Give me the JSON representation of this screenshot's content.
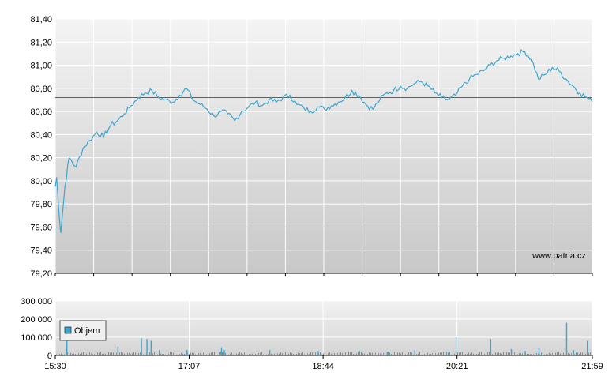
{
  "chart_data": [
    {
      "type": "line",
      "title": "",
      "xlabel": "",
      "ylabel": "",
      "ylim": [
        79.2,
        81.4
      ],
      "yticks": [
        "81,40",
        "81,20",
        "81,00",
        "80,80",
        "80,60",
        "80,40",
        "80,20",
        "80,00",
        "79,80",
        "79,60",
        "79,40",
        "79,20"
      ],
      "reference_line": 80.72,
      "watermark": "www.patria.cz",
      "grid": true,
      "colors": {
        "line": "#3aa6cf",
        "reference": "#d03030"
      },
      "series": [
        {
          "x": [
            "15:30",
            "15:31",
            "15:32",
            "15:33",
            "15:34",
            "15:37",
            "15:40",
            "15:45",
            "15:50",
            "15:55",
            "16:00",
            "16:05",
            "16:10",
            "16:15",
            "16:20",
            "16:25",
            "16:30",
            "16:35",
            "16:40",
            "16:45",
            "16:50",
            "16:55",
            "17:00",
            "17:05",
            "17:10",
            "17:15",
            "17:20",
            "17:25",
            "17:30",
            "17:35",
            "17:40",
            "17:45",
            "17:50",
            "17:55",
            "18:00",
            "18:05",
            "18:10",
            "18:15",
            "18:20",
            "18:25",
            "18:30",
            "18:35",
            "18:40",
            "18:45",
            "18:50",
            "18:55",
            "19:00",
            "19:05",
            "19:10",
            "19:15",
            "19:20",
            "19:25",
            "19:30",
            "19:35",
            "19:40",
            "19:45",
            "19:50",
            "19:55",
            "20:00",
            "20:05",
            "20:10",
            "20:15",
            "20:20",
            "20:25",
            "20:30",
            "20:35",
            "20:40",
            "20:45",
            "20:50",
            "20:55",
            "21:00",
            "21:05",
            "21:10",
            "21:15",
            "21:20",
            "21:25",
            "21:30",
            "21:35",
            "21:40",
            "21:45",
            "21:50",
            "21:55",
            "21:59"
          ],
          "values": [
            79.95,
            80.03,
            79.85,
            79.68,
            79.55,
            79.95,
            80.2,
            80.12,
            80.28,
            80.35,
            80.42,
            80.38,
            80.48,
            80.52,
            80.58,
            80.65,
            80.72,
            80.76,
            80.78,
            80.72,
            80.7,
            80.68,
            80.74,
            80.8,
            80.7,
            80.66,
            80.62,
            80.56,
            80.6,
            80.58,
            80.52,
            80.6,
            80.64,
            80.68,
            80.65,
            80.7,
            80.68,
            80.72,
            80.74,
            80.66,
            80.63,
            80.6,
            80.64,
            80.62,
            80.65,
            80.68,
            80.72,
            80.78,
            80.74,
            80.66,
            80.62,
            80.7,
            80.76,
            80.78,
            80.82,
            80.8,
            80.84,
            80.86,
            80.82,
            80.76,
            80.72,
            80.7,
            80.74,
            80.82,
            80.88,
            80.92,
            80.95,
            81.0,
            81.04,
            81.06,
            81.08,
            81.1,
            81.12,
            81.05,
            80.88,
            80.92,
            80.98,
            80.95,
            80.88,
            80.82,
            80.76,
            80.72,
            80.68
          ]
        }
      ]
    },
    {
      "type": "bar",
      "title": "",
      "xlabel": "",
      "ylabel": "",
      "ylim": [
        0,
        300000
      ],
      "yticks": [
        "300 000",
        "200 000",
        "100 000",
        "0"
      ],
      "xticks": [
        "15:30",
        "17:07",
        "18:44",
        "20:21",
        "21:59"
      ],
      "legend": {
        "label": "Objem",
        "placement": "left"
      },
      "colors": {
        "bar": "#3aa6cf"
      },
      "series": [
        {
          "name": "Objem",
          "x": [
            "15:38",
            "16:15",
            "16:32",
            "16:36",
            "16:39",
            "16:45",
            "17:05",
            "17:30",
            "17:32",
            "18:05",
            "18:40",
            "19:10",
            "19:30",
            "19:50",
            "20:15",
            "20:20",
            "20:45",
            "21:00",
            "21:10",
            "21:20",
            "21:40",
            "21:45",
            "21:55"
          ],
          "values": [
            100000,
            50000,
            95000,
            90000,
            80000,
            30000,
            30000,
            45000,
            30000,
            30000,
            25000,
            25000,
            20000,
            30000,
            20000,
            100000,
            90000,
            35000,
            25000,
            40000,
            180000,
            30000,
            80000
          ]
        }
      ]
    }
  ]
}
